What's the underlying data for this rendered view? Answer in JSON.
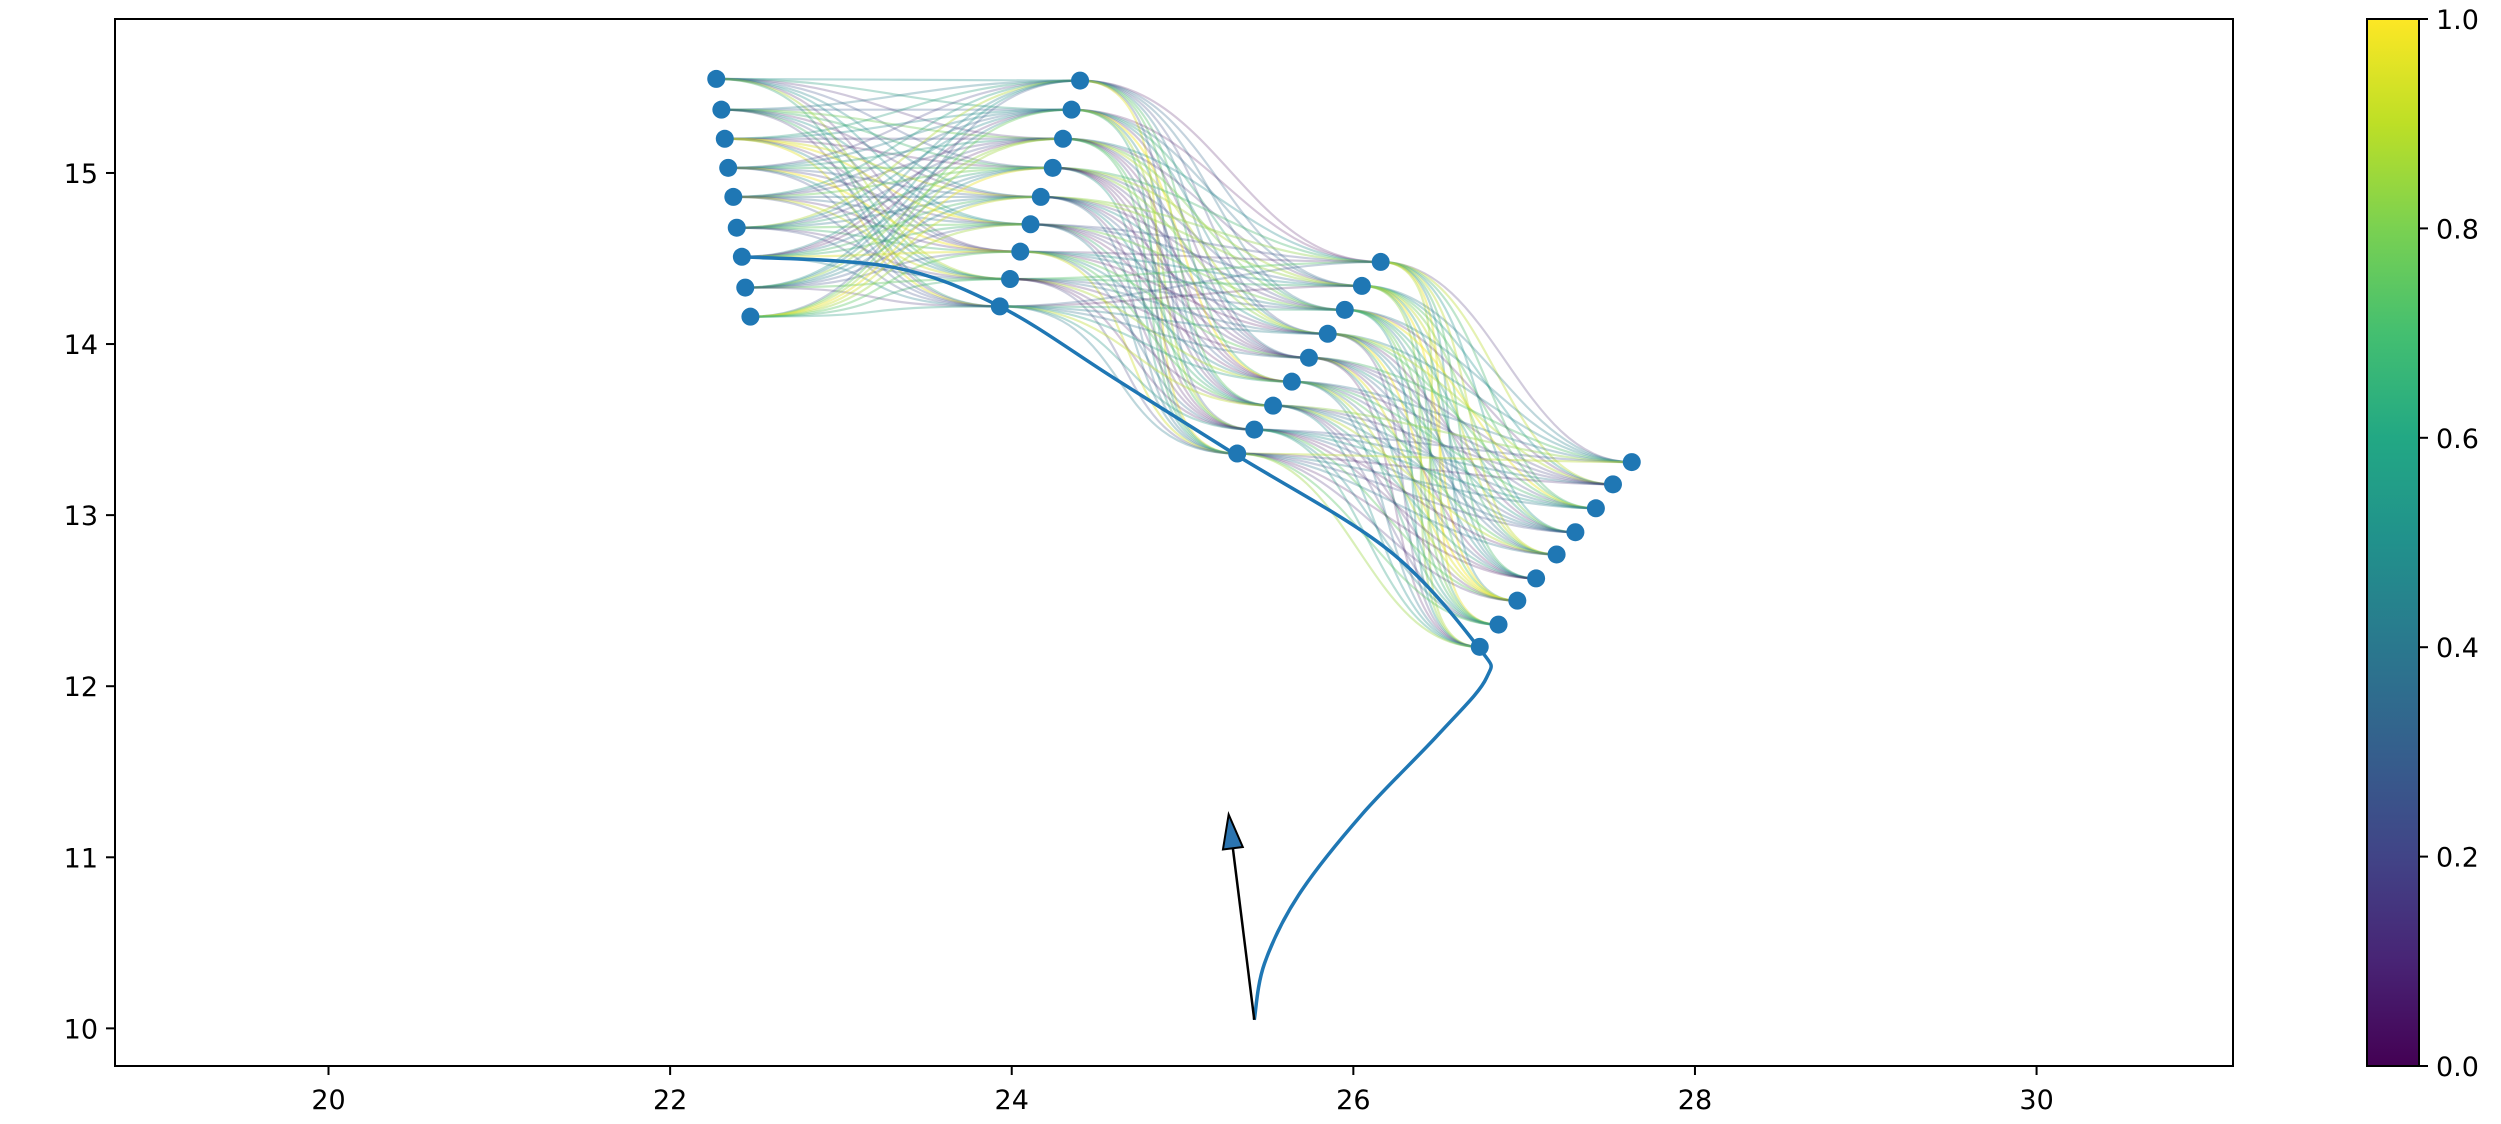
{
  "chart_data": {
    "type": "scatter",
    "title": "",
    "xlabel": "",
    "ylabel": "",
    "xlim": [
      18.75,
      31.15
    ],
    "ylim": [
      9.78,
      15.9
    ],
    "x_ticks": [
      "20",
      "22",
      "24",
      "26",
      "28",
      "30"
    ],
    "y_ticks": [
      "10",
      "11",
      "12",
      "13",
      "14",
      "15"
    ],
    "grid": false,
    "colors": {
      "points": "#1f77b4",
      "path": "#1f77b4",
      "arrow_fill": "#2b74b0",
      "colormap": [
        "#440154",
        "#3b528b",
        "#21918c",
        "#5ec962",
        "#fde725"
      ]
    },
    "colorbar": {
      "colormap": "viridis",
      "range": [
        0.0,
        1.0
      ],
      "ticks": [
        "0.0",
        "0.2",
        "0.4",
        "0.6",
        "0.8",
        "1.0"
      ]
    },
    "arrow": {
      "from": [
        25.42,
        10.05
      ],
      "to": [
        25.27,
        11.25
      ]
    },
    "path": [
      [
        25.42,
        10.05
      ],
      [
        25.48,
        10.38
      ],
      [
        25.68,
        10.78
      ],
      [
        26.05,
        11.25
      ],
      [
        26.5,
        11.72
      ],
      [
        26.78,
        12.05
      ],
      [
        26.73,
        12.23
      ],
      [
        26.2,
        12.8
      ],
      [
        25.3,
        13.36
      ],
      [
        24.6,
        13.8
      ],
      [
        23.93,
        14.22
      ],
      [
        23.3,
        14.45
      ],
      [
        22.42,
        14.51
      ]
    ],
    "series": [
      {
        "points": [
          [
            22.27,
            15.55
          ],
          [
            22.3,
            15.37
          ],
          [
            22.32,
            15.2
          ],
          [
            22.34,
            15.03
          ],
          [
            22.37,
            14.86
          ],
          [
            22.39,
            14.68
          ],
          [
            22.42,
            14.51
          ],
          [
            22.44,
            14.33
          ],
          [
            22.47,
            14.16
          ]
        ]
      },
      {
        "points": [
          [
            24.4,
            15.54
          ],
          [
            24.35,
            15.37
          ],
          [
            24.3,
            15.2
          ],
          [
            24.24,
            15.03
          ],
          [
            24.17,
            14.86
          ],
          [
            24.11,
            14.7
          ],
          [
            24.05,
            14.54
          ],
          [
            23.99,
            14.38
          ],
          [
            23.93,
            14.22
          ]
        ]
      },
      {
        "points": [
          [
            26.16,
            14.48
          ],
          [
            26.05,
            14.34
          ],
          [
            25.95,
            14.2
          ],
          [
            25.85,
            14.06
          ],
          [
            25.74,
            13.92
          ],
          [
            25.64,
            13.78
          ],
          [
            25.53,
            13.64
          ],
          [
            25.42,
            13.5
          ],
          [
            25.32,
            13.36
          ]
        ]
      },
      {
        "points": [
          [
            27.63,
            13.31
          ],
          [
            27.52,
            13.18
          ],
          [
            27.42,
            13.04
          ],
          [
            27.3,
            12.9
          ],
          [
            27.19,
            12.77
          ],
          [
            27.07,
            12.63
          ],
          [
            26.96,
            12.5
          ],
          [
            26.85,
            12.36
          ],
          [
            26.74,
            12.23
          ]
        ]
      }
    ]
  }
}
